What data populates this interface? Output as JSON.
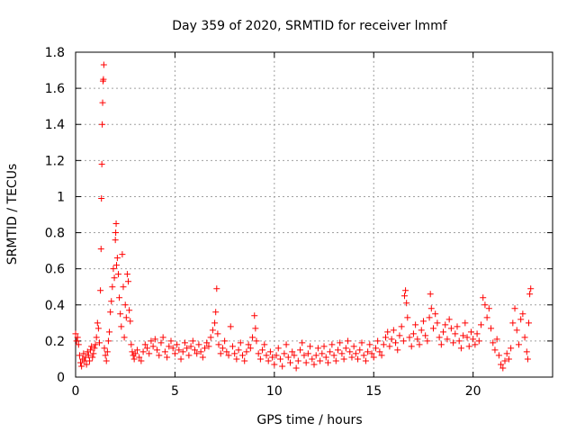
{
  "chart_data": {
    "type": "scatter",
    "title": "Day 359 of 2020, SRMTID for receiver lmmf",
    "xlabel": "GPS time / hours",
    "ylabel": "SRMTID / TECUs",
    "xlim": [
      0,
      24
    ],
    "ylim": [
      0,
      1.8
    ],
    "xticks": [
      0,
      5,
      10,
      15,
      20
    ],
    "xtick_labels": [
      "0",
      "5",
      "10",
      "15",
      "20"
    ],
    "yticks": [
      0,
      0.2,
      0.4,
      0.6,
      0.8,
      1,
      1.2,
      1.4,
      1.6,
      1.8
    ],
    "ytick_labels": [
      "0",
      "0.2",
      "0.4",
      "0.6",
      "0.8",
      "1",
      "1.2",
      "1.4",
      "1.6",
      "1.8"
    ],
    "grid": true,
    "marker": "+",
    "color": "#ff0000",
    "series": [
      {
        "name": "SRMTID",
        "points": [
          [
            0.0,
            0.24
          ],
          [
            0.05,
            0.2
          ],
          [
            0.1,
            0.22
          ],
          [
            0.15,
            0.18
          ],
          [
            0.2,
            0.12
          ],
          [
            0.25,
            0.08
          ],
          [
            0.3,
            0.06
          ],
          [
            0.35,
            0.1
          ],
          [
            0.4,
            0.13
          ],
          [
            0.45,
            0.09
          ],
          [
            0.5,
            0.11
          ],
          [
            0.55,
            0.07
          ],
          [
            0.6,
            0.14
          ],
          [
            0.65,
            0.12
          ],
          [
            0.7,
            0.09
          ],
          [
            0.75,
            0.15
          ],
          [
            0.8,
            0.17
          ],
          [
            0.85,
            0.11
          ],
          [
            0.9,
            0.13
          ],
          [
            0.95,
            0.16
          ],
          [
            1.0,
            0.18
          ],
          [
            1.05,
            0.22
          ],
          [
            1.1,
            0.3
          ],
          [
            1.15,
            0.27
          ],
          [
            1.2,
            0.19
          ],
          [
            1.25,
            0.48
          ],
          [
            1.28,
            0.71
          ],
          [
            1.3,
            0.99
          ],
          [
            1.32,
            1.18
          ],
          [
            1.34,
            1.4
          ],
          [
            1.36,
            1.52
          ],
          [
            1.38,
            1.64
          ],
          [
            1.4,
            1.65
          ],
          [
            1.42,
            1.73
          ],
          [
            1.45,
            0.16
          ],
          [
            1.5,
            0.12
          ],
          [
            1.55,
            0.09
          ],
          [
            1.6,
            0.14
          ],
          [
            1.65,
            0.2
          ],
          [
            1.7,
            0.25
          ],
          [
            1.75,
            0.36
          ],
          [
            1.8,
            0.42
          ],
          [
            1.85,
            0.5
          ],
          [
            1.9,
            0.6
          ],
          [
            1.95,
            0.55
          ],
          [
            2.0,
            0.76
          ],
          [
            2.02,
            0.8
          ],
          [
            2.04,
            0.85
          ],
          [
            2.06,
            0.62
          ],
          [
            2.1,
            0.66
          ],
          [
            2.15,
            0.57
          ],
          [
            2.2,
            0.44
          ],
          [
            2.25,
            0.35
          ],
          [
            2.3,
            0.28
          ],
          [
            2.35,
            0.68
          ],
          [
            2.4,
            0.5
          ],
          [
            2.45,
            0.22
          ],
          [
            2.5,
            0.4
          ],
          [
            2.55,
            0.33
          ],
          [
            2.6,
            0.57
          ],
          [
            2.65,
            0.53
          ],
          [
            2.7,
            0.37
          ],
          [
            2.75,
            0.31
          ],
          [
            2.8,
            0.18
          ],
          [
            2.85,
            0.14
          ],
          [
            2.9,
            0.12
          ],
          [
            2.95,
            0.1
          ],
          [
            3.0,
            0.13
          ],
          [
            3.1,
            0.15
          ],
          [
            3.2,
            0.11
          ],
          [
            3.3,
            0.09
          ],
          [
            3.4,
            0.14
          ],
          [
            3.5,
            0.18
          ],
          [
            3.6,
            0.16
          ],
          [
            3.7,
            0.13
          ],
          [
            3.8,
            0.2
          ],
          [
            3.9,
            0.17
          ],
          [
            4.0,
            0.21
          ],
          [
            4.1,
            0.15
          ],
          [
            4.2,
            0.12
          ],
          [
            4.3,
            0.19
          ],
          [
            4.4,
            0.22
          ],
          [
            4.5,
            0.14
          ],
          [
            4.6,
            0.11
          ],
          [
            4.7,
            0.17
          ],
          [
            4.8,
            0.2
          ],
          [
            4.9,
            0.16
          ],
          [
            5.0,
            0.13
          ],
          [
            5.1,
            0.18
          ],
          [
            5.2,
            0.15
          ],
          [
            5.3,
            0.1
          ],
          [
            5.4,
            0.14
          ],
          [
            5.5,
            0.19
          ],
          [
            5.6,
            0.16
          ],
          [
            5.7,
            0.12
          ],
          [
            5.8,
            0.17
          ],
          [
            5.9,
            0.2
          ],
          [
            6.0,
            0.15
          ],
          [
            6.1,
            0.13
          ],
          [
            6.2,
            0.18
          ],
          [
            6.3,
            0.14
          ],
          [
            6.4,
            0.11
          ],
          [
            6.5,
            0.16
          ],
          [
            6.6,
            0.19
          ],
          [
            6.7,
            0.17
          ],
          [
            6.8,
            0.22
          ],
          [
            6.9,
            0.26
          ],
          [
            7.0,
            0.3
          ],
          [
            7.05,
            0.36
          ],
          [
            7.1,
            0.49
          ],
          [
            7.15,
            0.24
          ],
          [
            7.2,
            0.18
          ],
          [
            7.3,
            0.13
          ],
          [
            7.4,
            0.16
          ],
          [
            7.5,
            0.2
          ],
          [
            7.6,
            0.14
          ],
          [
            7.7,
            0.12
          ],
          [
            7.8,
            0.28
          ],
          [
            7.9,
            0.17
          ],
          [
            8.0,
            0.13
          ],
          [
            8.1,
            0.1
          ],
          [
            8.2,
            0.15
          ],
          [
            8.3,
            0.19
          ],
          [
            8.4,
            0.12
          ],
          [
            8.5,
            0.09
          ],
          [
            8.6,
            0.14
          ],
          [
            8.7,
            0.18
          ],
          [
            8.8,
            0.16
          ],
          [
            8.9,
            0.22
          ],
          [
            9.0,
            0.34
          ],
          [
            9.05,
            0.27
          ],
          [
            9.1,
            0.2
          ],
          [
            9.2,
            0.13
          ],
          [
            9.3,
            0.1
          ],
          [
            9.4,
            0.15
          ],
          [
            9.5,
            0.18
          ],
          [
            9.6,
            0.12
          ],
          [
            9.7,
            0.09
          ],
          [
            9.8,
            0.14
          ],
          [
            9.9,
            0.11
          ],
          [
            10.0,
            0.07
          ],
          [
            10.1,
            0.12
          ],
          [
            10.2,
            0.16
          ],
          [
            10.3,
            0.1
          ],
          [
            10.4,
            0.06
          ],
          [
            10.5,
            0.13
          ],
          [
            10.6,
            0.18
          ],
          [
            10.7,
            0.11
          ],
          [
            10.8,
            0.08
          ],
          [
            10.9,
            0.14
          ],
          [
            11.0,
            0.12
          ],
          [
            11.1,
            0.05
          ],
          [
            11.2,
            0.09
          ],
          [
            11.3,
            0.15
          ],
          [
            11.4,
            0.19
          ],
          [
            11.5,
            0.12
          ],
          [
            11.6,
            0.08
          ],
          [
            11.7,
            0.13
          ],
          [
            11.8,
            0.17
          ],
          [
            11.9,
            0.1
          ],
          [
            12.0,
            0.07
          ],
          [
            12.1,
            0.12
          ],
          [
            12.2,
            0.16
          ],
          [
            12.3,
            0.09
          ],
          [
            12.4,
            0.13
          ],
          [
            12.5,
            0.17
          ],
          [
            12.6,
            0.11
          ],
          [
            12.7,
            0.08
          ],
          [
            12.8,
            0.14
          ],
          [
            12.9,
            0.18
          ],
          [
            13.0,
            0.12
          ],
          [
            13.1,
            0.09
          ],
          [
            13.2,
            0.15
          ],
          [
            13.3,
            0.19
          ],
          [
            13.4,
            0.13
          ],
          [
            13.5,
            0.1
          ],
          [
            13.6,
            0.16
          ],
          [
            13.7,
            0.2
          ],
          [
            13.8,
            0.14
          ],
          [
            13.9,
            0.11
          ],
          [
            14.0,
            0.17
          ],
          [
            14.1,
            0.13
          ],
          [
            14.2,
            0.1
          ],
          [
            14.3,
            0.15
          ],
          [
            14.4,
            0.19
          ],
          [
            14.5,
            0.12
          ],
          [
            14.6,
            0.09
          ],
          [
            14.7,
            0.14
          ],
          [
            14.8,
            0.18
          ],
          [
            14.9,
            0.13
          ],
          [
            15.0,
            0.11
          ],
          [
            15.1,
            0.16
          ],
          [
            15.2,
            0.2
          ],
          [
            15.3,
            0.14
          ],
          [
            15.4,
            0.12
          ],
          [
            15.5,
            0.18
          ],
          [
            15.6,
            0.22
          ],
          [
            15.7,
            0.25
          ],
          [
            15.8,
            0.17
          ],
          [
            15.9,
            0.21
          ],
          [
            16.0,
            0.26
          ],
          [
            16.1,
            0.19
          ],
          [
            16.2,
            0.15
          ],
          [
            16.3,
            0.23
          ],
          [
            16.4,
            0.28
          ],
          [
            16.5,
            0.2
          ],
          [
            16.55,
            0.45
          ],
          [
            16.6,
            0.48
          ],
          [
            16.65,
            0.41
          ],
          [
            16.7,
            0.33
          ],
          [
            16.8,
            0.22
          ],
          [
            16.9,
            0.17
          ],
          [
            17.0,
            0.24
          ],
          [
            17.1,
            0.29
          ],
          [
            17.2,
            0.21
          ],
          [
            17.3,
            0.18
          ],
          [
            17.4,
            0.26
          ],
          [
            17.5,
            0.31
          ],
          [
            17.6,
            0.23
          ],
          [
            17.7,
            0.2
          ],
          [
            17.8,
            0.33
          ],
          [
            17.85,
            0.46
          ],
          [
            17.9,
            0.38
          ],
          [
            18.0,
            0.27
          ],
          [
            18.1,
            0.35
          ],
          [
            18.2,
            0.3
          ],
          [
            18.3,
            0.22
          ],
          [
            18.4,
            0.18
          ],
          [
            18.5,
            0.25
          ],
          [
            18.6,
            0.29
          ],
          [
            18.7,
            0.21
          ],
          [
            18.8,
            0.32
          ],
          [
            18.9,
            0.27
          ],
          [
            19.0,
            0.19
          ],
          [
            19.1,
            0.24
          ],
          [
            19.2,
            0.28
          ],
          [
            19.3,
            0.2
          ],
          [
            19.4,
            0.16
          ],
          [
            19.5,
            0.23
          ],
          [
            19.6,
            0.3
          ],
          [
            19.7,
            0.22
          ],
          [
            19.8,
            0.17
          ],
          [
            19.9,
            0.25
          ],
          [
            20.0,
            0.21
          ],
          [
            20.1,
            0.18
          ],
          [
            20.2,
            0.24
          ],
          [
            20.3,
            0.2
          ],
          [
            20.4,
            0.29
          ],
          [
            20.5,
            0.44
          ],
          [
            20.6,
            0.4
          ],
          [
            20.7,
            0.33
          ],
          [
            20.8,
            0.38
          ],
          [
            20.9,
            0.27
          ],
          [
            21.0,
            0.19
          ],
          [
            21.1,
            0.15
          ],
          [
            21.2,
            0.21
          ],
          [
            21.3,
            0.12
          ],
          [
            21.4,
            0.07
          ],
          [
            21.5,
            0.05
          ],
          [
            21.6,
            0.09
          ],
          [
            21.7,
            0.13
          ],
          [
            21.8,
            0.1
          ],
          [
            21.9,
            0.16
          ],
          [
            22.0,
            0.3
          ],
          [
            22.1,
            0.38
          ],
          [
            22.2,
            0.26
          ],
          [
            22.3,
            0.18
          ],
          [
            22.4,
            0.32
          ],
          [
            22.5,
            0.35
          ],
          [
            22.6,
            0.22
          ],
          [
            22.7,
            0.14
          ],
          [
            22.75,
            0.1
          ],
          [
            22.8,
            0.3
          ],
          [
            22.85,
            0.46
          ],
          [
            22.9,
            0.49
          ]
        ]
      }
    ]
  }
}
